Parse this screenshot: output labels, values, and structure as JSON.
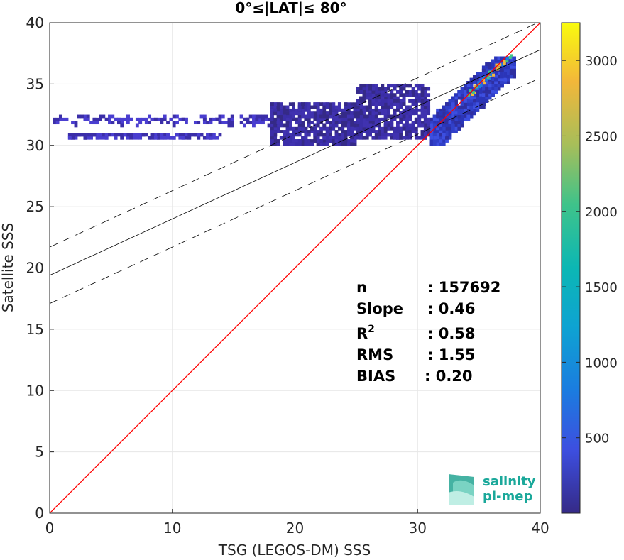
{
  "chart_data": {
    "type": "heatmap",
    "title": "0°≤|LAT|≤ 80°",
    "xlabel": "TSG (LEGOS-DM) SSS",
    "ylabel": "Satellite SSS",
    "xlim": [
      0,
      40
    ],
    "ylim": [
      0,
      40
    ],
    "xticks": [
      "0",
      "10",
      "20",
      "30",
      "40"
    ],
    "yticks": [
      "0",
      "5",
      "10",
      "15",
      "20",
      "25",
      "30",
      "35",
      "40"
    ],
    "grid": true,
    "colorbar": {
      "range": [
        0,
        3250
      ],
      "ticks": [
        "500",
        "1000",
        "1500",
        "2000",
        "2500",
        "3000"
      ],
      "colormap": "parula"
    },
    "lines": [
      {
        "name": "1:1",
        "color": "#ff0000",
        "style": "solid",
        "points": [
          [
            0,
            0
          ],
          [
            40,
            40
          ]
        ]
      },
      {
        "name": "regression",
        "color": "#000000",
        "style": "solid",
        "points": [
          [
            0,
            19.4
          ],
          [
            40,
            37.8
          ]
        ]
      },
      {
        "name": "upper",
        "color": "#000000",
        "style": "dashed",
        "points": [
          [
            0,
            21.7
          ],
          [
            40,
            40.1
          ]
        ]
      },
      {
        "name": "lower",
        "color": "#000000",
        "style": "dashed",
        "points": [
          [
            0,
            17.1
          ],
          [
            40,
            35.5
          ]
        ]
      }
    ],
    "density_clusters": [
      {
        "x": [
          31,
          38
        ],
        "y": [
          30,
          37
        ],
        "level": "high"
      },
      {
        "x": [
          25,
          31
        ],
        "y": [
          30.5,
          35
        ],
        "level": "low"
      },
      {
        "x": [
          18,
          25
        ],
        "y": [
          30,
          33.5
        ],
        "level": "low"
      },
      {
        "x": [
          0.3,
          18
        ],
        "y": [
          31.7,
          32.4
        ],
        "level": "sparse"
      },
      {
        "x": [
          1.5,
          14
        ],
        "y": [
          30.6,
          31
        ],
        "level": "sparse"
      }
    ],
    "stats": [
      {
        "label": "n",
        "value": ": 157692"
      },
      {
        "label": "Slope",
        "value": ": 0.46"
      },
      {
        "label": "R",
        "sup": "2",
        "value": ": 0.58"
      },
      {
        "label": "RMS",
        "value": ": 1.55"
      },
      {
        "label": "BIAS",
        "value": ": 0.20"
      }
    ]
  },
  "logo": {
    "line1": "salinity",
    "line2": "pi-mep"
  }
}
